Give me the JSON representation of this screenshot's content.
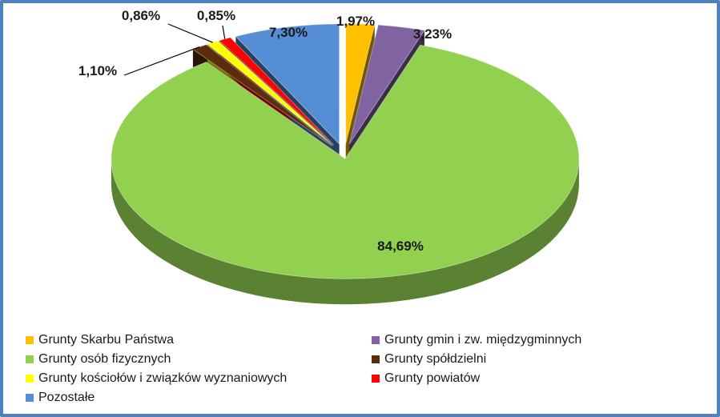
{
  "chart_data": {
    "type": "pie",
    "title": "",
    "slices": [
      {
        "label": "Grunty Skarbu Państwa",
        "value": 1.97,
        "display": "1,97%",
        "color": "#ffc000"
      },
      {
        "label": "Grunty gmin i zw. międzygminnych",
        "value": 3.23,
        "display": "3,23%",
        "color": "#8064a2"
      },
      {
        "label": "Grunty osób fizycznych",
        "value": 84.69,
        "display": "84,69%",
        "color": "#92d050"
      },
      {
        "label": "Grunty spółdzielni",
        "value": 1.1,
        "display": "1,10%",
        "color": "#5a2d0c"
      },
      {
        "label": "Grunty  kościołów i związków wyznaniowych",
        "value": 0.86,
        "display": "0,86%",
        "color": "#ffff00"
      },
      {
        "label": "Grunty  powiatów",
        "value": 0.85,
        "display": "0,85%",
        "color": "#ff0000"
      },
      {
        "label": "Pozostałe",
        "value": 7.3,
        "display": "7,30%",
        "color": "#558ed5"
      }
    ],
    "legend_position": "bottom",
    "style": "3d-exploded"
  }
}
